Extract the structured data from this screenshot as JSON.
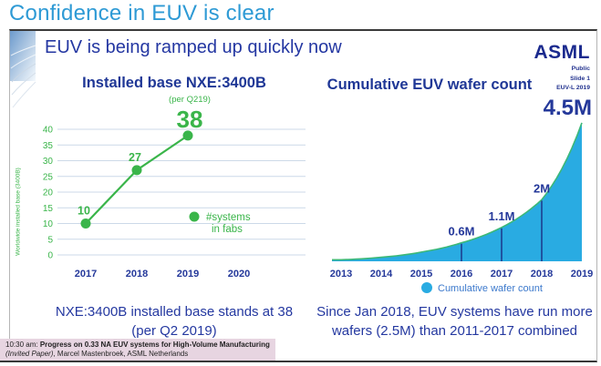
{
  "page_title": "Confidence in EUV is clear",
  "slide": {
    "subtitle": "EUV is being ramped up quickly now",
    "logo_text": "ASML",
    "meta": [
      "Public",
      "Slide 1",
      "EUV-L 2019"
    ]
  },
  "colors": {
    "title_blue": "#2e9ad5",
    "navy": "#24389a",
    "logo_navy": "#1b2a8e",
    "green": "#3ab54a",
    "grid": "#ccd9e8",
    "area_cyan": "#29abe2",
    "curve_green": "#3cb878",
    "marker_line_navy": "#1d3f8f",
    "legend_blue": "#3c79cc",
    "footer_pink": "#e7d5e1"
  },
  "chart_data": [
    {
      "type": "line",
      "title": "Installed base NXE:3400B",
      "ylabel": "Worldwide installed base (3400B)",
      "categories": [
        "2017",
        "2018",
        "2019",
        "2020"
      ],
      "values": [
        10,
        27,
        38
      ],
      "point_labels": [
        "10",
        "27",
        "38"
      ],
      "top_annotation": "(per Q219)",
      "legend_lines": [
        "#systems",
        "in fabs"
      ],
      "legend_position": "right-middle",
      "ylim": [
        0,
        40
      ],
      "yticks": [
        0,
        5,
        10,
        15,
        20,
        25,
        30,
        35,
        40
      ],
      "grid": true
    },
    {
      "type": "area",
      "title": "Cumulative EUV wafer count",
      "categories": [
        "2013",
        "2014",
        "2015",
        "2016",
        "2017",
        "2018",
        "2019"
      ],
      "values_millions": [
        0.05,
        0.13,
        0.3,
        0.6,
        1.1,
        2.0,
        4.5
      ],
      "annotations": [
        {
          "year": "2016",
          "label": "0.6M"
        },
        {
          "year": "2017",
          "label": "1.1M"
        },
        {
          "year": "2018",
          "label": "2M"
        },
        {
          "year": "2019",
          "label": "4.5M"
        }
      ],
      "legend": "Cumulative wafer count",
      "legend_position": "bottom-center",
      "ylim_millions": [
        0,
        4.5
      ],
      "grid": false
    }
  ],
  "captions": {
    "left": [
      "NXE:3400B installed base stands at 38",
      "(per Q2 2019)"
    ],
    "right": [
      "Since Jan 2018, EUV systems have run more",
      "wafers (2.5M) than 2011-2017 combined"
    ]
  },
  "footer": {
    "time": "10:30 am: ",
    "talk_title": "Progress on 0.33 NA EUV systems for High-Volume Manufacturing ",
    "paper_type": "(Invited Paper)",
    "authors": ", Marcel Mastenbroek, ASML Netherlands"
  }
}
